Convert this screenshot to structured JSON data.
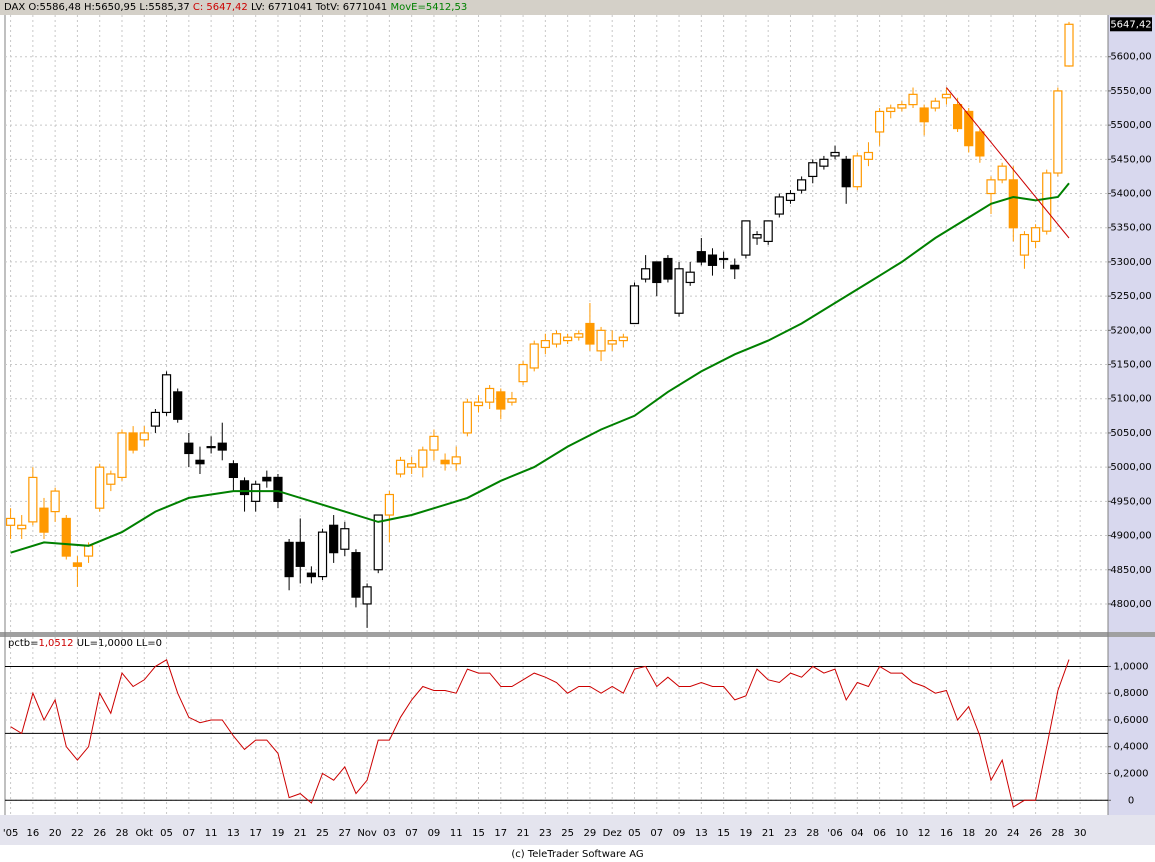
{
  "header": [
    "DAX O:5586,48 H:5650,95 L:5585,37",
    "C: 5647,42",
    "LV: 6771041 TotV: 6771041",
    "MovE=5412,53"
  ],
  "footer": "(c) TeleTrader Software AG",
  "chart_data": {
    "type": "candlestick",
    "x": [
      0,
      1,
      2,
      3,
      4,
      5,
      6,
      7,
      8,
      9,
      10,
      11,
      12,
      13,
      14,
      15,
      16,
      17,
      18,
      19,
      20,
      21,
      22,
      23,
      24,
      25,
      26,
      27,
      28,
      29,
      30,
      31,
      32,
      33,
      34,
      35,
      36,
      37,
      38,
      39,
      40,
      41,
      42,
      43,
      44,
      45,
      46,
      47,
      48,
      49,
      50,
      51,
      52,
      53,
      54,
      55,
      56,
      57,
      58,
      59,
      60,
      61,
      62,
      63,
      64,
      65,
      66,
      67,
      68,
      69,
      70,
      71,
      72,
      73,
      74,
      75,
      76,
      77,
      78,
      79,
      80,
      81,
      82,
      83,
      84,
      85,
      86,
      87,
      88,
      89,
      90,
      91,
      92,
      93,
      94,
      95
    ],
    "open": [
      4915,
      4910,
      4920,
      4940,
      4935,
      4925,
      4860,
      4870,
      4940,
      4975,
      4985,
      5050,
      5040,
      5060,
      5080,
      5110,
      5035,
      5010,
      5030,
      5035,
      5005,
      4980,
      4950,
      4985,
      4985,
      4890,
      4890,
      4845,
      4840,
      4915,
      4880,
      4875,
      4800,
      4850,
      4930,
      4990,
      5000,
      5000,
      5025,
      5010,
      5005,
      5050,
      5090,
      5095,
      5110,
      5095,
      5125,
      5145,
      5175,
      5180,
      5185,
      5190,
      5210,
      5170,
      5180,
      5185,
      5210,
      5275,
      5300,
      5305,
      5225,
      5270,
      5315,
      5310,
      5305,
      5295,
      5310,
      5335,
      5330,
      5370,
      5390,
      5405,
      5425,
      5440,
      5455,
      5450,
      5410,
      5450,
      5490,
      5520,
      5525,
      5530,
      5525,
      5525,
      5540,
      5530,
      5520,
      5490,
      5400,
      5420,
      5420,
      5310,
      5330,
      5345,
      5430,
      5586.48
    ],
    "high": [
      4940,
      4930,
      5000,
      4955,
      4970,
      4930,
      4870,
      4890,
      5005,
      4995,
      5055,
      5060,
      5060,
      5085,
      5140,
      5115,
      5050,
      5030,
      5045,
      5065,
      5010,
      4985,
      4980,
      4995,
      4990,
      4895,
      4925,
      4855,
      4910,
      4930,
      4920,
      4880,
      4830,
      4930,
      4965,
      5015,
      5015,
      5030,
      5055,
      5020,
      5030,
      5100,
      5105,
      5120,
      5115,
      5110,
      5155,
      5185,
      5195,
      5200,
      5195,
      5200,
      5240,
      5205,
      5200,
      5195,
      5270,
      5310,
      5300,
      5310,
      5300,
      5300,
      5335,
      5320,
      5315,
      5305,
      5360,
      5345,
      5360,
      5400,
      5405,
      5425,
      5450,
      5455,
      5470,
      5455,
      5460,
      5475,
      5525,
      5530,
      5535,
      5555,
      5530,
      5540,
      5555,
      5540,
      5525,
      5495,
      5425,
      5445,
      5440,
      5345,
      5355,
      5435,
      5555,
      5650.95
    ],
    "low": [
      4895,
      4895,
      4915,
      4895,
      4920,
      4865,
      4825,
      4860,
      4935,
      4965,
      4980,
      5020,
      5030,
      5050,
      5075,
      5065,
      5000,
      4990,
      5020,
      5010,
      4965,
      4935,
      4935,
      4970,
      4940,
      4820,
      4830,
      4830,
      4835,
      4860,
      4870,
      4795,
      4765,
      4845,
      4890,
      4985,
      4990,
      4985,
      5010,
      4995,
      4995,
      5045,
      5080,
      5085,
      5070,
      5090,
      5120,
      5140,
      5165,
      5175,
      5180,
      5185,
      5170,
      5155,
      5170,
      5175,
      5210,
      5270,
      5250,
      5270,
      5220,
      5265,
      5295,
      5280,
      5290,
      5275,
      5305,
      5325,
      5325,
      5365,
      5385,
      5400,
      5415,
      5435,
      5450,
      5385,
      5405,
      5440,
      5470,
      5510,
      5520,
      5525,
      5485,
      5520,
      5530,
      5490,
      5460,
      5445,
      5370,
      5415,
      5330,
      5290,
      5320,
      5340,
      5425,
      5585.37
    ],
    "close": [
      4925,
      4915,
      4985,
      4905,
      4965,
      4870,
      4855,
      4885,
      5000,
      4990,
      5050,
      5025,
      5050,
      5080,
      5135,
      5070,
      5020,
      5005,
      5030,
      5025,
      4985,
      4960,
      4975,
      4980,
      4950,
      4840,
      4855,
      4840,
      4905,
      4875,
      4910,
      4810,
      4825,
      4930,
      4960,
      5010,
      5005,
      5025,
      5045,
      5005,
      5015,
      5095,
      5095,
      5115,
      5085,
      5100,
      5150,
      5180,
      5185,
      5195,
      5190,
      5195,
      5180,
      5200,
      5185,
      5190,
      5265,
      5290,
      5270,
      5275,
      5290,
      5285,
      5300,
      5295,
      5305,
      5290,
      5360,
      5340,
      5360,
      5395,
      5400,
      5420,
      5445,
      5450,
      5460,
      5410,
      5455,
      5460,
      5520,
      5525,
      5530,
      5545,
      5505,
      5535,
      5545,
      5495,
      5470,
      5455,
      5420,
      5440,
      5350,
      5340,
      5350,
      5430,
      5550,
      5647.42
    ],
    "colors": [
      "#ff9900",
      "#ff9900",
      "#ff9900",
      "#ff9900",
      "#ff9900",
      "#ff9900",
      "#ff9900",
      "#ff9900",
      "#ff9900",
      "#ff9900",
      "#ff9900",
      "#ff9900",
      "#ff9900",
      "#000000",
      "#000000",
      "#000000",
      "#000000",
      "#000000",
      "#000000",
      "#000000",
      "#000000",
      "#000000",
      "#000000",
      "#000000",
      "#000000",
      "#000000",
      "#000000",
      "#000000",
      "#000000",
      "#000000",
      "#000000",
      "#000000",
      "#000000",
      "#000000",
      "#ff9900",
      "#ff9900",
      "#ff9900",
      "#ff9900",
      "#ff9900",
      "#ff9900",
      "#ff9900",
      "#ff9900",
      "#ff9900",
      "#ff9900",
      "#ff9900",
      "#ff9900",
      "#ff9900",
      "#ff9900",
      "#ff9900",
      "#ff9900",
      "#ff9900",
      "#ff9900",
      "#ff9900",
      "#ff9900",
      "#ff9900",
      "#ff9900",
      "#000000",
      "#000000",
      "#000000",
      "#000000",
      "#000000",
      "#000000",
      "#000000",
      "#000000",
      "#000000",
      "#000000",
      "#000000",
      "#000000",
      "#000000",
      "#000000",
      "#000000",
      "#000000",
      "#000000",
      "#000000",
      "#000000",
      "#000000",
      "#ff9900",
      "#ff9900",
      "#ff9900",
      "#ff9900",
      "#ff9900",
      "#ff9900",
      "#ff9900",
      "#ff9900",
      "#ff9900",
      "#ff9900",
      "#ff9900",
      "#ff9900",
      "#ff9900",
      "#ff9900",
      "#ff9900",
      "#ff9900",
      "#ff9900",
      "#ff9900",
      "#ff9900",
      "#ff9900"
    ],
    "moving_average": {
      "color": "#008000",
      "x": [
        0,
        3,
        7,
        10,
        13,
        16,
        20,
        24,
        27,
        30,
        33,
        36,
        39,
        41,
        44,
        47,
        50,
        53,
        56,
        59,
        62,
        65,
        68,
        71,
        74,
        77,
        80,
        83,
        86,
        88,
        90,
        92,
        94,
        95
      ],
      "values": [
        4875,
        4890,
        4885,
        4905,
        4935,
        4955,
        4965,
        4965,
        4950,
        4935,
        4920,
        4930,
        4945,
        4955,
        4980,
        5000,
        5030,
        5055,
        5075,
        5110,
        5140,
        5165,
        5185,
        5210,
        5240,
        5270,
        5300,
        5335,
        5365,
        5385,
        5395,
        5390,
        5395,
        5415
      ]
    },
    "trendline": {
      "color": "#cc0000",
      "x": [
        84,
        95
      ],
      "values": [
        5555,
        5335
      ]
    },
    "last_price": {
      "value": 5647.42,
      "label": "5647,42"
    },
    "xlim": [
      -0.5,
      98.5
    ],
    "xticks": [
      {
        "value": 0,
        "label": "'05"
      },
      {
        "value": 2,
        "label": "16"
      },
      {
        "value": 4,
        "label": "20"
      },
      {
        "value": 6,
        "label": "22"
      },
      {
        "value": 8,
        "label": "26"
      },
      {
        "value": 10,
        "label": "28"
      },
      {
        "value": 12,
        "label": "Okt"
      },
      {
        "value": 14,
        "label": "05"
      },
      {
        "value": 16,
        "label": "07"
      },
      {
        "value": 18,
        "label": "11"
      },
      {
        "value": 20,
        "label": "13"
      },
      {
        "value": 22,
        "label": "17"
      },
      {
        "value": 24,
        "label": "19"
      },
      {
        "value": 26,
        "label": "21"
      },
      {
        "value": 28,
        "label": "25"
      },
      {
        "value": 30,
        "label": "27"
      },
      {
        "value": 32,
        "label": "Nov"
      },
      {
        "value": 34,
        "label": "03"
      },
      {
        "value": 36,
        "label": "07"
      },
      {
        "value": 38,
        "label": "09"
      },
      {
        "value": 40,
        "label": "11"
      },
      {
        "value": 42,
        "label": "15"
      },
      {
        "value": 44,
        "label": "17"
      },
      {
        "value": 46,
        "label": "21"
      },
      {
        "value": 48,
        "label": "23"
      },
      {
        "value": 50,
        "label": "25"
      },
      {
        "value": 52,
        "label": "29"
      },
      {
        "value": 54,
        "label": "Dez"
      },
      {
        "value": 56,
        "label": "05"
      },
      {
        "value": 58,
        "label": "07"
      },
      {
        "value": 60,
        "label": "09"
      },
      {
        "value": 62,
        "label": "13"
      },
      {
        "value": 64,
        "label": "15"
      },
      {
        "value": 66,
        "label": "19"
      },
      {
        "value": 68,
        "label": "21"
      },
      {
        "value": 70,
        "label": "23"
      },
      {
        "value": 72,
        "label": "28"
      },
      {
        "value": 74,
        "label": "'06"
      },
      {
        "value": 76,
        "label": "04"
      },
      {
        "value": 78,
        "label": "06"
      },
      {
        "value": 80,
        "label": "10"
      },
      {
        "value": 82,
        "label": "12"
      },
      {
        "value": 84,
        "label": "16"
      },
      {
        "value": 86,
        "label": "18"
      },
      {
        "value": 88,
        "label": "20"
      },
      {
        "value": 90,
        "label": "24"
      },
      {
        "value": 92,
        "label": "26"
      },
      {
        "value": 94,
        "label": "28"
      },
      {
        "value": 96,
        "label": "30"
      }
    ],
    "ylim": [
      4759,
      5661
    ],
    "yticks": [
      {
        "value": 4800,
        "label": "4800,00"
      },
      {
        "value": 4850,
        "label": "4850,00"
      },
      {
        "value": 4900,
        "label": "4900,00"
      },
      {
        "value": 4950,
        "label": "4950,00"
      },
      {
        "value": 5000,
        "label": "5000,00"
      },
      {
        "value": 5050,
        "label": "5050,00"
      },
      {
        "value": 5100,
        "label": "5100,00"
      },
      {
        "value": 5150,
        "label": "5150,00"
      },
      {
        "value": 5200,
        "label": "5200,00"
      },
      {
        "value": 5250,
        "label": "5250,00"
      },
      {
        "value": 5300,
        "label": "5300,00"
      },
      {
        "value": 5350,
        "label": "5350,00"
      },
      {
        "value": 5400,
        "label": "5400,00"
      },
      {
        "value": 5450,
        "label": "5450,00"
      },
      {
        "value": 5500,
        "label": "5500,00"
      },
      {
        "value": 5550,
        "label": "5550,00"
      },
      {
        "value": 5600,
        "label": "5600,00"
      }
    ],
    "grid": true,
    "indicator": {
      "type": "line",
      "title": [
        "pctb=",
        "1,0512",
        "UL=1,0000 LL=0"
      ],
      "color": "#cc0000",
      "values": [
        0.55,
        0.5,
        0.8,
        0.6,
        0.75,
        0.4,
        0.3,
        0.4,
        0.8,
        0.65,
        0.95,
        0.85,
        0.9,
        1.0,
        1.05,
        0.8,
        0.62,
        0.58,
        0.6,
        0.6,
        0.48,
        0.38,
        0.45,
        0.45,
        0.35,
        0.02,
        0.05,
        -0.02,
        0.2,
        0.15,
        0.25,
        0.05,
        0.15,
        0.45,
        0.45,
        0.62,
        0.75,
        0.85,
        0.82,
        0.82,
        0.8,
        0.98,
        0.95,
        0.95,
        0.85,
        0.85,
        0.9,
        0.95,
        0.92,
        0.88,
        0.8,
        0.85,
        0.85,
        0.8,
        0.85,
        0.8,
        0.98,
        1.0,
        0.85,
        0.92,
        0.85,
        0.85,
        0.88,
        0.85,
        0.85,
        0.75,
        0.78,
        0.98,
        0.9,
        0.88,
        0.95,
        0.92,
        1.0,
        0.95,
        0.98,
        0.75,
        0.88,
        0.85,
        1.0,
        0.95,
        0.95,
        0.88,
        0.85,
        0.8,
        0.82,
        0.6,
        0.7,
        0.48,
        0.15,
        0.3,
        -0.05,
        0.0,
        0.0,
        0.4,
        0.82,
        1.0512
      ],
      "hlines": [
        1,
        0.5,
        0
      ],
      "ylim": [
        -0.11,
        1.22
      ],
      "yticks": [
        0,
        {
          "value": 0.2,
          "label": "0,2000"
        },
        {
          "value": 0.4,
          "label": "0,4000"
        },
        {
          "value": 0.6,
          "label": "0,6000"
        },
        {
          "value": 0.8,
          "label": "0,8000"
        },
        {
          "value": 1,
          "label": "1,0000"
        }
      ]
    }
  }
}
